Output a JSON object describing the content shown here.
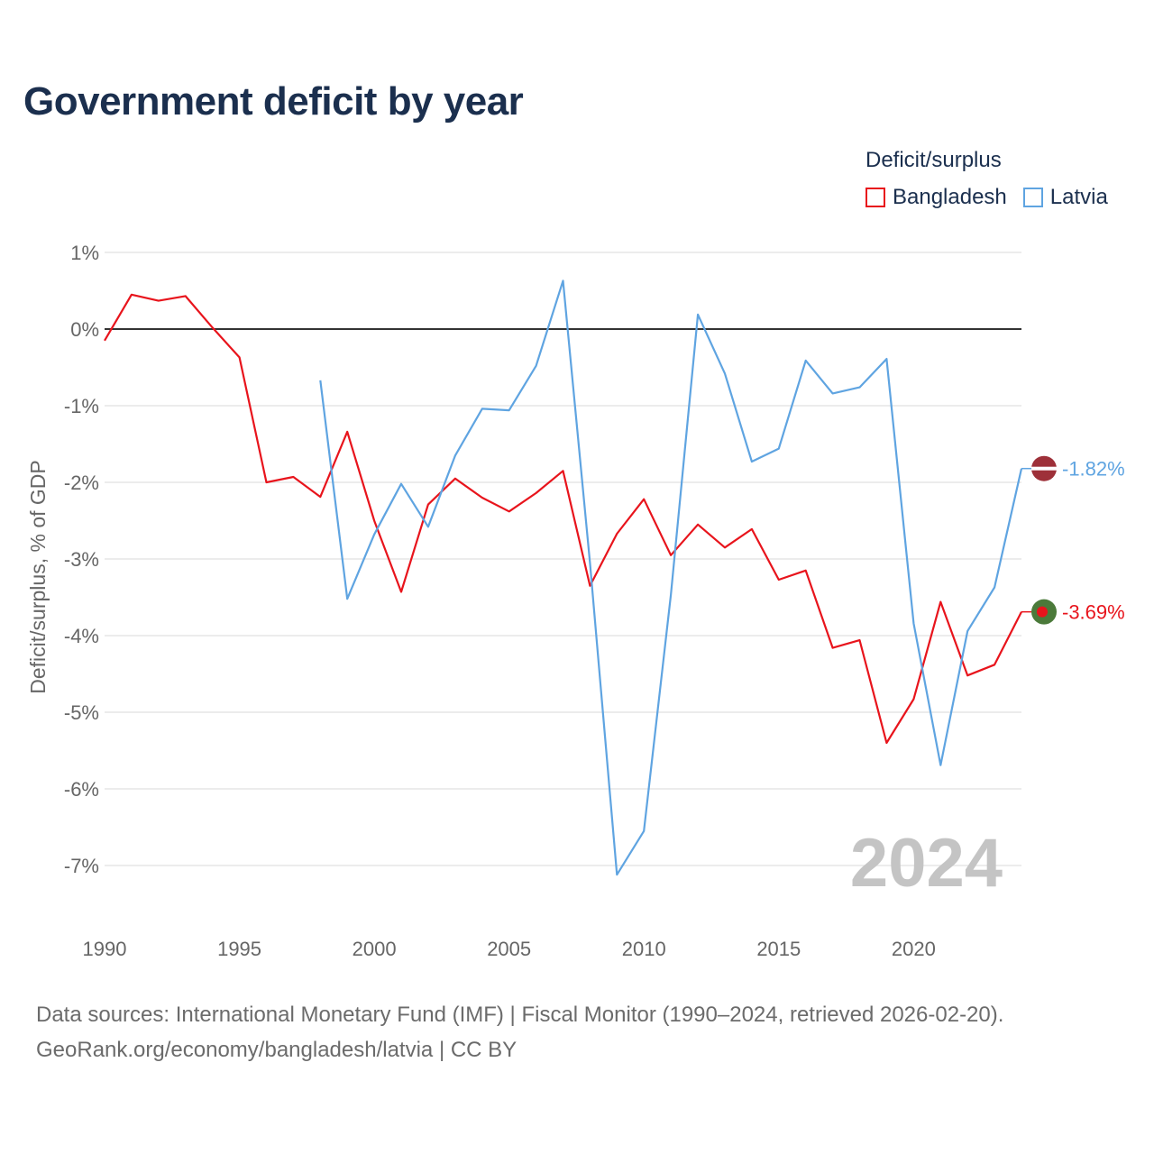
{
  "title": "Government deficit by year",
  "legend": {
    "title": "Deficit/surplus",
    "items": [
      {
        "label": "Bangladesh",
        "color": "#e8141c"
      },
      {
        "label": "Latvia",
        "color": "#5fa4e1"
      }
    ]
  },
  "footer": {
    "line1": "Data sources: International Monetary Fund (IMF) | Fiscal Monitor (1990–2024, retrieved 2026-02-20).",
    "line2": "GeoRank.org/economy/bangladesh/latvia | CC BY"
  },
  "chart_data": {
    "type": "line",
    "title": "Government deficit by year",
    "ylabel": "Deficit/surplus, % of GDP",
    "xlabel": "",
    "xlim": [
      1990,
      2024
    ],
    "ylim": [
      -7.7,
      1.1
    ],
    "y_ticks": [
      1,
      0,
      -1,
      -2,
      -3,
      -4,
      -5,
      -6,
      -7
    ],
    "y_tick_labels": [
      "1%",
      "0%",
      "-1%",
      "-2%",
      "-3%",
      "-4%",
      "-5%",
      "-6%",
      "-7%"
    ],
    "x_ticks": [
      1990,
      1995,
      2000,
      2005,
      2010,
      2015,
      2020
    ],
    "x_tick_labels": [
      "1990",
      "1995",
      "2000",
      "2005",
      "2010",
      "2015",
      "2020"
    ],
    "watermark_year": "2024",
    "series": [
      {
        "name": "Bangladesh",
        "color": "#e8141c",
        "x": [
          1990,
          1991,
          1992,
          1993,
          1994,
          1995,
          1996,
          1997,
          1998,
          1999,
          2000,
          2001,
          2002,
          2003,
          2004,
          2005,
          2006,
          2007,
          2008,
          2009,
          2010,
          2011,
          2012,
          2013,
          2014,
          2015,
          2016,
          2017,
          2018,
          2019,
          2020,
          2021,
          2022,
          2023,
          2024
        ],
        "values": [
          -0.15,
          0.45,
          0.37,
          0.43,
          0.02,
          -0.37,
          -2.0,
          -1.93,
          -2.19,
          -1.34,
          -2.5,
          -3.43,
          -2.29,
          -1.95,
          -2.2,
          -2.38,
          -2.14,
          -1.85,
          -3.35,
          -2.67,
          -2.22,
          -2.95,
          -2.55,
          -2.85,
          -2.61,
          -3.27,
          -3.15,
          -4.16,
          -4.06,
          -5.4,
          -4.83,
          -3.56,
          -4.52,
          -4.38,
          -3.69
        ],
        "end_label": "-3.69%"
      },
      {
        "name": "Latvia",
        "color": "#5fa4e1",
        "x": [
          1998,
          1999,
          2000,
          2001,
          2002,
          2003,
          2004,
          2005,
          2006,
          2007,
          2008,
          2009,
          2010,
          2011,
          2012,
          2013,
          2014,
          2015,
          2016,
          2017,
          2018,
          2019,
          2020,
          2021,
          2022,
          2023,
          2024
        ],
        "values": [
          -0.67,
          -3.52,
          -2.68,
          -2.02,
          -2.58,
          -1.65,
          -1.04,
          -1.06,
          -0.48,
          0.63,
          -3.05,
          -7.12,
          -6.55,
          -3.47,
          0.19,
          -0.58,
          -1.73,
          -1.56,
          -0.41,
          -0.84,
          -0.76,
          -0.39,
          -3.84,
          -5.69,
          -3.94,
          -3.37,
          -1.82
        ],
        "end_label": "-1.82%"
      }
    ]
  }
}
